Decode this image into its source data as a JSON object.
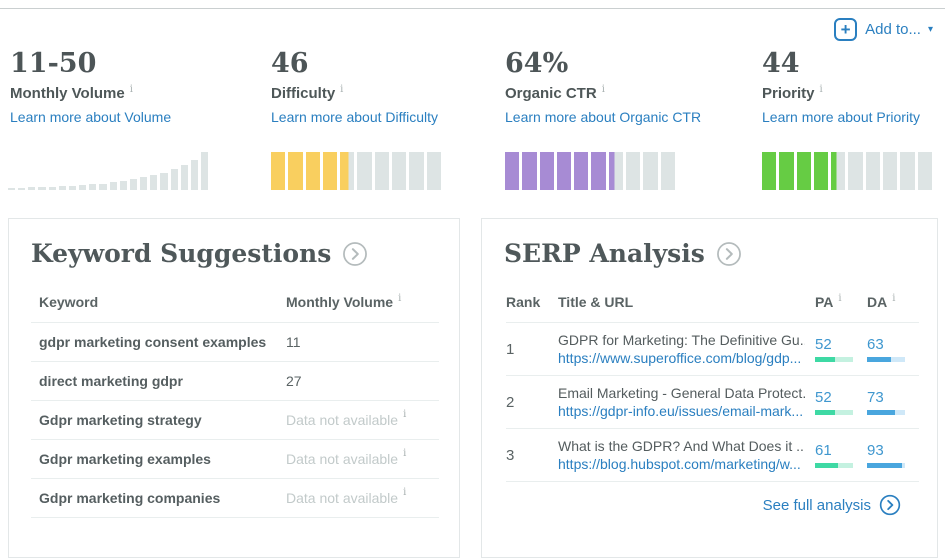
{
  "colors": {
    "link_blue": "#2a7fc0",
    "score_blue": "#3f97cf",
    "difficulty_yellow": "#f9cf5f",
    "ctr_purple": "#a78bd4",
    "priority_green": "#66cc44",
    "meter_gray": "#dde4e4",
    "pa_fill": "#3ed9a4",
    "pa_track": "#c4f1e0",
    "da_fill": "#49a6de",
    "da_track": "#cfe8f8"
  },
  "add_to": {
    "label": "Add to...",
    "icon": "plus-icon"
  },
  "metrics": [
    {
      "value": "11-50",
      "label": "Monthly Volume",
      "link": "Learn more about Volume",
      "visual": "histogram"
    },
    {
      "value": "46",
      "label": "Difficulty",
      "link": "Learn more about Difficulty",
      "visual": "meter",
      "score": 46,
      "color": "#f9cf5f"
    },
    {
      "value": "64%",
      "label": "Organic CTR",
      "link": "Learn more about Organic CTR",
      "visual": "meter",
      "score": 64,
      "color": "#a78bd4"
    },
    {
      "value": "44",
      "label": "Priority",
      "link": "Learn more about Priority",
      "visual": "meter",
      "score": 44,
      "color": "#66cc44"
    }
  ],
  "volume_histogram": [
    5,
    5,
    7,
    8,
    9,
    10,
    11,
    13,
    15,
    17,
    20,
    24,
    28,
    33,
    39,
    46,
    55,
    65,
    79,
    100
  ],
  "keyword_suggestions": {
    "title": "Keyword Suggestions",
    "columns": {
      "keyword": "Keyword",
      "volume": "Monthly Volume"
    },
    "rows": [
      {
        "keyword": "gdpr marketing consent examples",
        "volume": "11",
        "available": true
      },
      {
        "keyword": "direct marketing gdpr",
        "volume": "27",
        "available": true
      },
      {
        "keyword": "Gdpr marketing strategy",
        "volume": "Data not available",
        "available": false
      },
      {
        "keyword": "Gdpr marketing examples",
        "volume": "Data not available",
        "available": false
      },
      {
        "keyword": "Gdpr marketing companies",
        "volume": "Data not available",
        "available": false
      }
    ]
  },
  "serp_analysis": {
    "title": "SERP Analysis",
    "columns": {
      "rank": "Rank",
      "title_url": "Title & URL",
      "pa": "PA",
      "da": "DA"
    },
    "rows": [
      {
        "rank": "1",
        "title": "GDPR for Marketing: The Definitive Gu...",
        "url": "https://www.superoffice.com/blog/gdp...",
        "pa": 52,
        "da": 63
      },
      {
        "rank": "2",
        "title": "Email Marketing - General Data Protect...",
        "url": "https://gdpr-info.eu/issues/email-mark...",
        "pa": 52,
        "da": 73
      },
      {
        "rank": "3",
        "title": "What is the GDPR? And What Does it ...",
        "url": "https://blog.hubspot.com/marketing/w...",
        "pa": 61,
        "da": 93
      }
    ],
    "footer_link": "See full analysis"
  }
}
